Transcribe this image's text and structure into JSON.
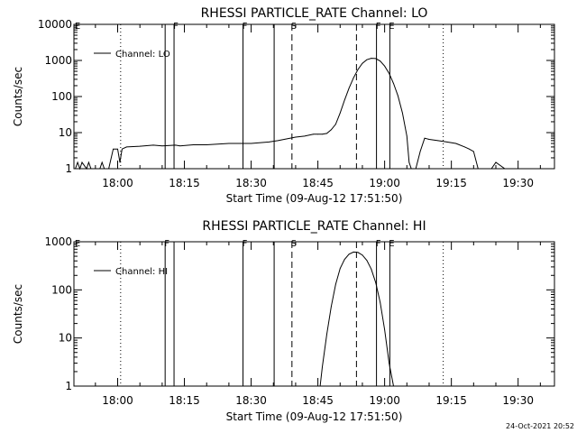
{
  "chart_data": [
    {
      "type": "line",
      "title": "RHESSI PARTICLE_RATE Channel: LO",
      "xlabel": "Start Time (09-Aug-12 17:51:50)",
      "ylabel": "Counts/sec",
      "yscale": "log",
      "ylim": [
        1,
        10000
      ],
      "yticks": [
        1,
        10,
        100,
        1000,
        10000
      ],
      "ytick_labels": [
        "1",
        "10",
        "100",
        "1000",
        "10000"
      ],
      "xlim_minutes": [
        -9.83,
        98.17
      ],
      "xticks": [
        {
          "label": "18:00",
          "min": 0
        },
        {
          "label": "18:15",
          "min": 15
        },
        {
          "label": "18:30",
          "min": 30
        },
        {
          "label": "18:45",
          "min": 45
        },
        {
          "label": "19:00",
          "min": 60
        },
        {
          "label": "19:15",
          "min": 75
        },
        {
          "label": "19:30",
          "min": 90
        }
      ],
      "legend": {
        "label": "Channel: LO",
        "location": "top-left"
      },
      "series": [
        {
          "name": "Channel: LO",
          "x_minutes": [
            -9.5,
            -9,
            -8.5,
            -8,
            -7,
            -6.5,
            -6,
            -4,
            -3.5,
            -3,
            -2,
            -1,
            0,
            0.5,
            1,
            2,
            5,
            8,
            10,
            13,
            14,
            17,
            20,
            25,
            30,
            34,
            36,
            40,
            42,
            44,
            45,
            46,
            47,
            48,
            49,
            50,
            51,
            52,
            53,
            54,
            55,
            56,
            57,
            58,
            59,
            60,
            61,
            62,
            63,
            64,
            65,
            65.5,
            66,
            67,
            68,
            69,
            70,
            72,
            74,
            76,
            78,
            79,
            80,
            81,
            84,
            85,
            87,
            88
          ],
          "y": [
            1,
            1.5,
            1,
            1.5,
            1,
            1.5,
            1,
            1,
            1.5,
            1,
            1,
            3.5,
            3.5,
            1.5,
            3.5,
            4,
            4.2,
            4.5,
            4.3,
            4.5,
            4.3,
            4.6,
            4.6,
            5,
            5,
            5.5,
            6,
            7.5,
            8,
            9,
            9,
            9,
            9.5,
            12,
            17,
            35,
            80,
            170,
            330,
            560,
            830,
            1050,
            1150,
            1130,
            960,
            700,
            440,
            230,
            105,
            35,
            8,
            1.5,
            1,
            1,
            3,
            7,
            6.5,
            6,
            5.5,
            5,
            4,
            3.5,
            3,
            1,
            1,
            1.5,
            1,
            1
          ]
        }
      ],
      "vlines": [
        {
          "min": 0.67,
          "style": "dotted",
          "label": ""
        },
        {
          "min": 10.67,
          "style": "solid",
          "label": ""
        },
        {
          "min": 12.67,
          "style": "solid",
          "label": "F"
        },
        {
          "min": 28.17,
          "style": "solid",
          "label": "F"
        },
        {
          "min": 35.17,
          "style": "solid",
          "label": ""
        },
        {
          "min": 39.17,
          "style": "dashed",
          "label": "S"
        },
        {
          "min": 53.67,
          "style": "dashed",
          "label": ""
        },
        {
          "min": 58.17,
          "style": "solid",
          "label": "F"
        },
        {
          "min": 61.17,
          "style": "solid",
          "label": "E"
        },
        {
          "min": 73.17,
          "style": "dotted",
          "label": ""
        }
      ],
      "edge_marks": [
        "E"
      ]
    },
    {
      "type": "line",
      "title": "RHESSI PARTICLE_RATE Channel: HI",
      "xlabel": "Start Time (09-Aug-12 17:51:50)",
      "ylabel": "Counts/sec",
      "yscale": "log",
      "ylim": [
        1,
        1000
      ],
      "yticks": [
        1,
        10,
        100,
        1000
      ],
      "ytick_labels": [
        "1",
        "10",
        "100",
        "1000"
      ],
      "xlim_minutes": [
        -9.83,
        98.17
      ],
      "xticks": [
        {
          "label": "18:00",
          "min": 0
        },
        {
          "label": "18:15",
          "min": 15
        },
        {
          "label": "18:30",
          "min": 30
        },
        {
          "label": "18:45",
          "min": 45
        },
        {
          "label": "19:00",
          "min": 60
        },
        {
          "label": "19:15",
          "min": 75
        },
        {
          "label": "19:30",
          "min": 90
        }
      ],
      "legend": {
        "label": "Channel: HI",
        "location": "top-left"
      },
      "series": [
        {
          "name": "Channel: HI",
          "x_minutes": [
            45.5,
            46,
            47,
            48,
            49,
            50,
            51,
            52,
            53,
            54,
            55,
            56,
            57,
            58,
            59,
            60,
            61,
            62
          ],
          "y": [
            1,
            2.5,
            12,
            45,
            130,
            280,
            430,
            550,
            610,
            600,
            530,
            410,
            270,
            140,
            55,
            15,
            3,
            1
          ]
        }
      ],
      "vlines": [
        {
          "min": 0.67,
          "style": "dotted",
          "label": ""
        },
        {
          "min": 10.67,
          "style": "solid",
          "label": "F"
        },
        {
          "min": 12.67,
          "style": "solid",
          "label": ""
        },
        {
          "min": 28.17,
          "style": "solid",
          "label": "F"
        },
        {
          "min": 35.17,
          "style": "solid",
          "label": ""
        },
        {
          "min": 39.17,
          "style": "dashed",
          "label": "S"
        },
        {
          "min": 53.67,
          "style": "dashed",
          "label": ""
        },
        {
          "min": 58.17,
          "style": "solid",
          "label": "F"
        },
        {
          "min": 61.17,
          "style": "solid",
          "label": "E"
        },
        {
          "min": 73.17,
          "style": "dotted",
          "label": ""
        }
      ],
      "edge_marks": [
        "E"
      ]
    }
  ],
  "footer": {
    "timestamp": "24-Oct-2021 20:52"
  }
}
